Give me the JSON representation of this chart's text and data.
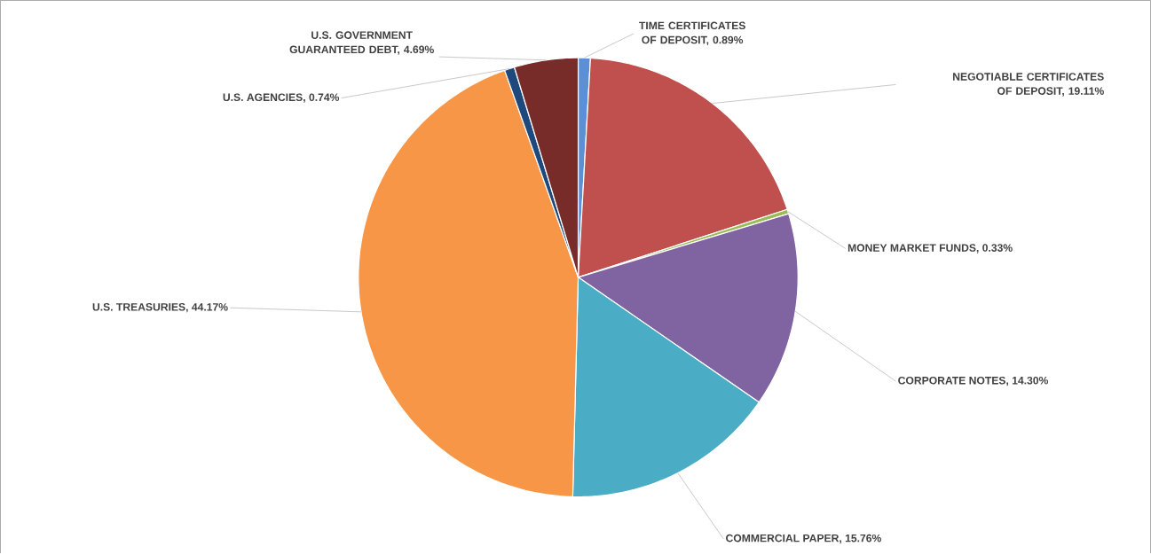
{
  "chart_data": {
    "type": "pie",
    "categories": [
      "TIME CERTIFICATES OF DEPOSIT, 0.89%",
      "NEGOTIABLE CERTIFICATES OF DEPOSIT, 19.11%",
      "MONEY MARKET FUNDS, 0.33%",
      "CORPORATE NOTES, 14.30%",
      "COMMERCIAL PAPER, 15.76%",
      "U.S. TREASURIES, 44.17%",
      "U.S. AGENCIES, 0.74%",
      "U.S. GOVERNMENT GUARANTEED DEBT, 4.69%"
    ],
    "values": [
      0.89,
      19.11,
      0.33,
      14.3,
      15.76,
      44.17,
      0.74,
      4.69
    ],
    "colors": [
      "#5b8fd6",
      "#c0504d",
      "#9bbb59",
      "#8064a2",
      "#4bacc6",
      "#f79646",
      "#1f497d",
      "#772c2a"
    ]
  }
}
